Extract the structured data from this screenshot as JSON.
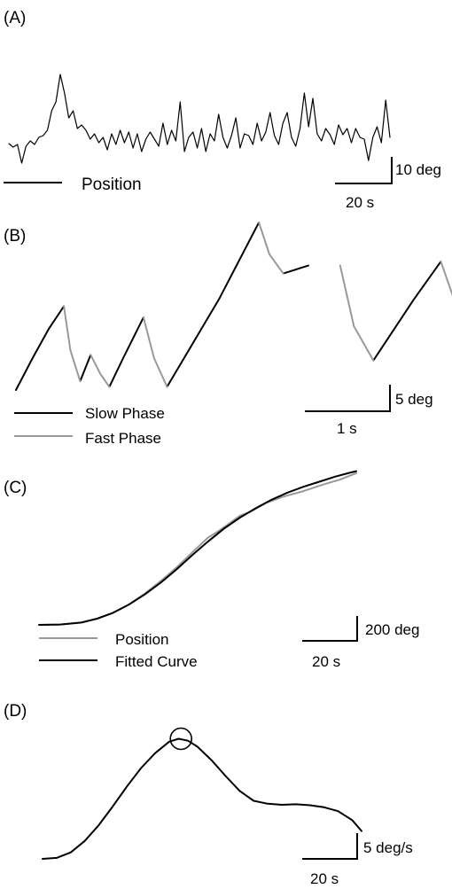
{
  "chart_data": [
    {
      "panel": "(A)",
      "type": "line",
      "series": [
        {
          "name": "Position",
          "color": "#000000",
          "x": [
            0,
            2,
            4,
            6,
            8,
            10,
            12,
            14,
            16,
            18,
            20,
            22,
            24,
            26,
            28,
            30,
            32,
            34,
            36,
            38,
            40,
            42,
            44,
            46,
            48,
            50,
            52,
            54,
            56,
            58,
            60,
            62,
            64,
            66,
            68,
            70,
            72,
            74,
            76,
            78,
            80,
            82,
            84,
            86,
            88,
            90,
            92,
            94,
            96,
            98,
            100,
            102,
            104,
            106,
            108,
            110,
            112,
            114,
            116,
            118,
            120,
            122,
            124,
            126,
            128,
            130,
            132,
            134,
            136,
            138,
            140,
            142,
            144,
            146,
            148,
            150,
            152,
            154,
            156,
            158,
            160,
            162,
            164,
            166,
            168,
            170,
            172,
            174,
            176,
            178
          ],
          "y": [
            -10.8,
            -12.4,
            -11.2,
            -19.6,
            -12.0,
            -9.6,
            -11.2,
            -8.0,
            -7.2,
            -4.8,
            4.0,
            8.0,
            20.4,
            12.0,
            0.8,
            4.0,
            -4.0,
            -2.4,
            -4.8,
            -8.8,
            -6.4,
            -10.4,
            -8.0,
            -13.6,
            -6.4,
            -11.2,
            -4.8,
            -10.4,
            -5.6,
            -12.8,
            -6.4,
            -14.4,
            -8.8,
            -5.6,
            -8.8,
            -12.0,
            -1.6,
            -11.2,
            -4.8,
            -9.6,
            8.0,
            -14.4,
            -8.0,
            -5.6,
            -12.8,
            -4.0,
            -14.4,
            -6.4,
            -9.6,
            2.4,
            -8.0,
            -12.8,
            -7.2,
            0.8,
            -12.8,
            -6.4,
            -7.2,
            -11.2,
            -1.6,
            -9.6,
            -5.6,
            3.2,
            -7.2,
            -11.2,
            -1.6,
            3.2,
            -8.0,
            -12.0,
            -4.0,
            12.0,
            -3.2,
            9.6,
            -6.4,
            -9.6,
            -4.0,
            -6.8,
            -11.2,
            -2.4,
            -6.8,
            -4.0,
            -10.4,
            -4.0,
            -8.0,
            -8.8,
            -18.4,
            -8.0,
            -3.2,
            -10.4,
            8.8,
            -8.0
          ]
        }
      ],
      "scale_bars": {
        "x": "20 s",
        "y": "10 deg"
      }
    },
    {
      "panel": "(B)",
      "type": "line",
      "series": [
        {
          "name": "Slow Phase",
          "color": "#000000",
          "x": [
            [
              0,
              0.2,
              0.4,
              0.59
            ],
            [
              0.79,
              0.92
            ],
            [
              1.15,
              1.32,
              1.57
            ],
            [
              1.86,
              2.5,
              2.99
            ],
            [
              3.29,
              3.6,
              3.99
            ],
            [
              4.4,
              4.9,
              5.23
            ],
            [
              5.48,
              5.75
            ],
            [
              5.99,
              6.4,
              6.94
            ]
          ],
          "y": [
            [
              0,
              3.9,
              7.6,
              10.5
            ],
            [
              1.1,
              4.4
            ],
            [
              0.4,
              4.0,
              9.1
            ],
            [
              0.4,
              11.4,
              21.0
            ],
            [
              14.6,
              15.6
            ],
            [
              3.7,
              11.4,
              16.1
            ],
            [
              7.6,
              9.1
            ],
            [
              3.7,
              9.7,
              16.4
            ]
          ]
        },
        {
          "name": "Fast Phase",
          "color": "#999999",
          "x": [
            [
              0.59,
              0.67,
              0.79
            ],
            [
              0.92,
              1.04,
              1.15
            ],
            [
              1.57,
              1.7,
              1.86
            ],
            [
              2.99,
              3.12,
              3.29
            ],
            [
              3.99,
              4.16,
              4.4
            ],
            [
              5.23,
              5.37,
              5.48
            ],
            [
              5.75,
              5.88,
              5.99
            ],
            [
              6.94,
              7.02,
              7.13
            ]
          ],
          "y": [
            [
              10.5,
              5.0,
              1.1
            ],
            [
              4.4,
              2.0,
              0.4
            ],
            [
              9.1,
              4.0,
              0.4
            ],
            [
              21.0,
              17.0,
              14.6
            ],
            [
              15.6,
              8.0,
              3.7
            ],
            [
              16.1,
              12.0,
              7.6
            ],
            [
              9.1,
              6.0,
              3.7
            ],
            [
              16.4,
              14.0,
              11.5
            ]
          ]
        }
      ],
      "scale_bars": {
        "x": "1 s",
        "y": "5 deg"
      },
      "legend": [
        "Slow Phase",
        "Fast Phase"
      ]
    },
    {
      "panel": "(C)",
      "type": "line",
      "series": [
        {
          "name": "Position",
          "color": "#999999",
          "x": [
            0,
            8,
            16,
            22,
            28,
            34,
            40,
            46,
            52,
            58,
            64,
            68,
            72,
            76,
            80,
            86,
            92,
            100,
            108,
            114,
            120
          ],
          "y": [
            0,
            1,
            6,
            16,
            31,
            52,
            80,
            112,
            147,
            186,
            224,
            241,
            260,
            280,
            290,
            313,
            328,
            343,
            361,
            373,
            389
          ]
        },
        {
          "name": "Fitted Curve",
          "color": "#000000",
          "x": [
            0,
            8,
            16,
            22,
            28,
            34,
            40,
            46,
            52,
            58,
            64,
            70,
            76,
            82,
            88,
            94,
            100,
            106,
            112,
            118,
            120
          ],
          "y": [
            0,
            1,
            6,
            16,
            31,
            52,
            78,
            108,
            142,
            179,
            214,
            247,
            275,
            299,
            321,
            339,
            354,
            367,
            380,
            391,
            394
          ]
        }
      ],
      "scale_bars": {
        "x": "20 s",
        "y": "200 deg"
      },
      "legend": [
        "Position",
        "Fitted Curve"
      ]
    },
    {
      "panel": "(D)",
      "type": "line",
      "series": [
        {
          "color": "#000000",
          "x": [
            0,
            6,
            12,
            18,
            24,
            30,
            36,
            42,
            48,
            54,
            58,
            62,
            66,
            72,
            78,
            84,
            90,
            96,
            102,
            108,
            114,
            120,
            126,
            132,
            136
          ],
          "y": [
            0,
            0.2,
            1.3,
            3.6,
            6.8,
            10.6,
            14.6,
            18.3,
            21.3,
            23.6,
            24.2,
            23.8,
            22.6,
            19.9,
            16.7,
            13.7,
            11.7,
            11.1,
            10.9,
            11.0,
            10.8,
            10.4,
            9.6,
            7.8,
            5.6
          ]
        }
      ],
      "marker": {
        "shape": "circle",
        "x": 59,
        "y": 24.2
      },
      "scale_bars": {
        "x": "20 s",
        "y": "5 deg/s"
      }
    }
  ]
}
